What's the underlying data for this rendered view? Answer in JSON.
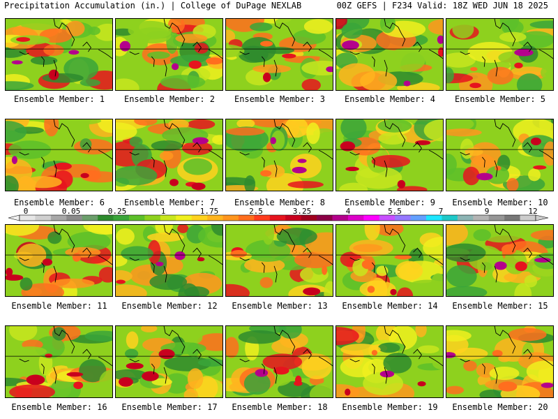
{
  "header": {
    "title_left": "Precipitation Accumulation (in.) | College of DuPage NEXLAB",
    "title_right": "00Z GEFS | F234 Valid: 18Z WED JUN 18 2025"
  },
  "panels": [
    {
      "label": "Ensemble Member: 1"
    },
    {
      "label": "Ensemble Member: 2"
    },
    {
      "label": "Ensemble Member: 3"
    },
    {
      "label": "Ensemble Member: 4"
    },
    {
      "label": "Ensemble Member: 5"
    },
    {
      "label": "Ensemble Member: 6"
    },
    {
      "label": "Ensemble Member: 7"
    },
    {
      "label": "Ensemble Member: 8"
    },
    {
      "label": "Ensemble Member: 9"
    },
    {
      "label": "Ensemble Member: 10"
    },
    {
      "label": "Ensemble Member: 11"
    },
    {
      "label": "Ensemble Member: 12"
    },
    {
      "label": "Ensemble Member: 13"
    },
    {
      "label": "Ensemble Member: 14"
    },
    {
      "label": "Ensemble Member: 15"
    },
    {
      "label": "Ensemble Member: 16"
    },
    {
      "label": "Ensemble Member: 17"
    },
    {
      "label": "Ensemble Member: 18"
    },
    {
      "label": "Ensemble Member: 19"
    },
    {
      "label": "Ensemble Member: 20"
    }
  ],
  "colorbar": {
    "labels": [
      "0",
      "0.05",
      "0.25",
      "1",
      "1.75",
      "2.5",
      "3.25",
      "4",
      "5.5",
      "7",
      "9",
      "12"
    ],
    "colors": [
      "#e6e6e6",
      "#cfcfcf",
      "#a8a8a8",
      "#8c8c8c",
      "#6b9e6b",
      "#2e8b2e",
      "#3aa53a",
      "#5cbf2a",
      "#8ed11e",
      "#c8e61e",
      "#f0f01e",
      "#ffd21e",
      "#ffb41e",
      "#ff961e",
      "#ff6e1e",
      "#ff3c1e",
      "#e6141e",
      "#c8001e",
      "#a0001e",
      "#8c0046",
      "#b4008c",
      "#dc00c8",
      "#ff00ff",
      "#c850ff",
      "#9678ff",
      "#64a0ff",
      "#1ee6ff",
      "#1ec8c8",
      "#8cb4b4",
      "#b4b4b4",
      "#969696",
      "#787878",
      "#cccccc"
    ]
  }
}
